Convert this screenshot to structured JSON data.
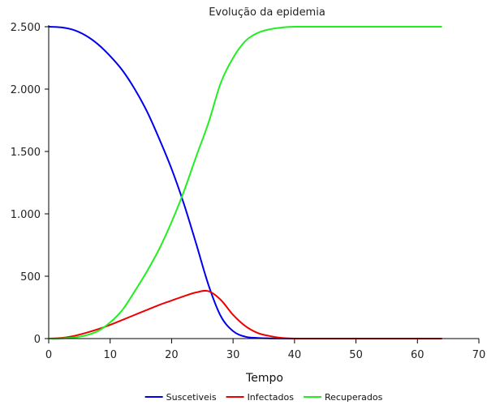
{
  "chart_data": {
    "type": "line",
    "title": "Evolução da epidemia",
    "xlabel": "Tempo",
    "ylabel": "",
    "xlim": [
      0,
      70
    ],
    "ylim": [
      0,
      2500
    ],
    "x_ticks": [
      0,
      10,
      20,
      30,
      40,
      50,
      60,
      70
    ],
    "x_tick_labels": [
      "0",
      "10",
      "20",
      "30",
      "40",
      "50",
      "60",
      "70"
    ],
    "y_ticks": [
      0,
      500,
      1000,
      1500,
      2000,
      2500
    ],
    "y_tick_labels": [
      "0",
      "500",
      "1.000",
      "1.500",
      "2.000",
      "2.500"
    ],
    "grid": false,
    "legend_position": "bottom",
    "x": [
      0,
      2,
      4,
      6,
      8,
      10,
      12,
      14,
      16,
      18,
      20,
      22,
      24,
      26,
      28,
      30,
      32,
      34,
      36,
      38,
      40,
      44,
      48,
      52,
      56,
      60,
      64
    ],
    "series": [
      {
        "name": "Suscetiveis",
        "color": "#0000ee",
        "values": [
          2500,
          2495,
          2475,
          2430,
          2360,
          2265,
          2150,
          2000,
          1820,
          1600,
          1360,
          1080,
          760,
          430,
          180,
          60,
          15,
          5,
          2,
          1,
          0,
          0,
          0,
          0,
          0,
          0,
          0
        ]
      },
      {
        "name": "Infectados",
        "color": "#ee0000",
        "values": [
          0,
          5,
          20,
          45,
          75,
          110,
          150,
          190,
          230,
          270,
          305,
          340,
          370,
          380,
          310,
          190,
          100,
          45,
          20,
          5,
          0,
          0,
          0,
          0,
          0,
          0,
          0
        ]
      },
      {
        "name": "Recuperados",
        "color": "#22ee22",
        "values": [
          0,
          2,
          8,
          25,
          60,
          130,
          230,
          380,
          540,
          720,
          935,
          1180,
          1460,
          1730,
          2050,
          2250,
          2385,
          2450,
          2480,
          2494,
          2500,
          2500,
          2500,
          2500,
          2500,
          2500,
          2500
        ]
      }
    ]
  }
}
